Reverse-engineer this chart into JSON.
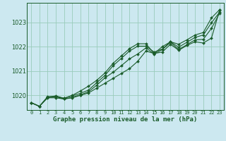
{
  "title": "Graphe pression niveau de la mer (hPa)",
  "bg_color": "#cce8f0",
  "grid_color": "#99ccbb",
  "line_color": "#1a5c2a",
  "xlim": [
    -0.5,
    23.5
  ],
  "ylim": [
    1019.4,
    1023.8
  ],
  "yticks": [
    1020,
    1021,
    1022,
    1023
  ],
  "xticks": [
    0,
    1,
    2,
    3,
    4,
    5,
    6,
    7,
    8,
    9,
    10,
    11,
    12,
    13,
    14,
    15,
    16,
    17,
    18,
    19,
    20,
    21,
    22,
    23
  ],
  "series": [
    [
      1019.7,
      1019.55,
      1019.9,
      1019.9,
      1019.85,
      1019.9,
      1020.0,
      1020.1,
      1020.3,
      1020.5,
      1020.7,
      1020.9,
      1021.1,
      1021.4,
      1021.82,
      1021.72,
      1021.78,
      1022.1,
      1021.85,
      1022.05,
      1022.2,
      1022.15,
      1022.35,
      1023.5
    ],
    [
      1019.7,
      1019.55,
      1019.95,
      1019.95,
      1019.85,
      1019.92,
      1020.02,
      1020.15,
      1020.42,
      1020.72,
      1020.95,
      1021.22,
      1021.5,
      1021.7,
      1021.95,
      1021.7,
      1021.88,
      1022.18,
      1021.88,
      1022.08,
      1022.28,
      1022.3,
      1022.75,
      1023.38
    ],
    [
      1019.7,
      1019.55,
      1019.92,
      1019.95,
      1019.88,
      1019.98,
      1020.08,
      1020.22,
      1020.52,
      1020.82,
      1021.22,
      1021.52,
      1021.82,
      1022.02,
      1022.02,
      1021.78,
      1021.9,
      1022.2,
      1021.98,
      1022.18,
      1022.38,
      1022.48,
      1022.98,
      1023.42
    ],
    [
      1019.7,
      1019.55,
      1019.92,
      1019.98,
      1019.88,
      1020.0,
      1020.18,
      1020.38,
      1020.62,
      1020.92,
      1021.32,
      1021.62,
      1021.92,
      1022.12,
      1022.12,
      1021.72,
      1022.0,
      1022.2,
      1022.1,
      1022.28,
      1022.48,
      1022.58,
      1023.18,
      1023.52
    ]
  ]
}
